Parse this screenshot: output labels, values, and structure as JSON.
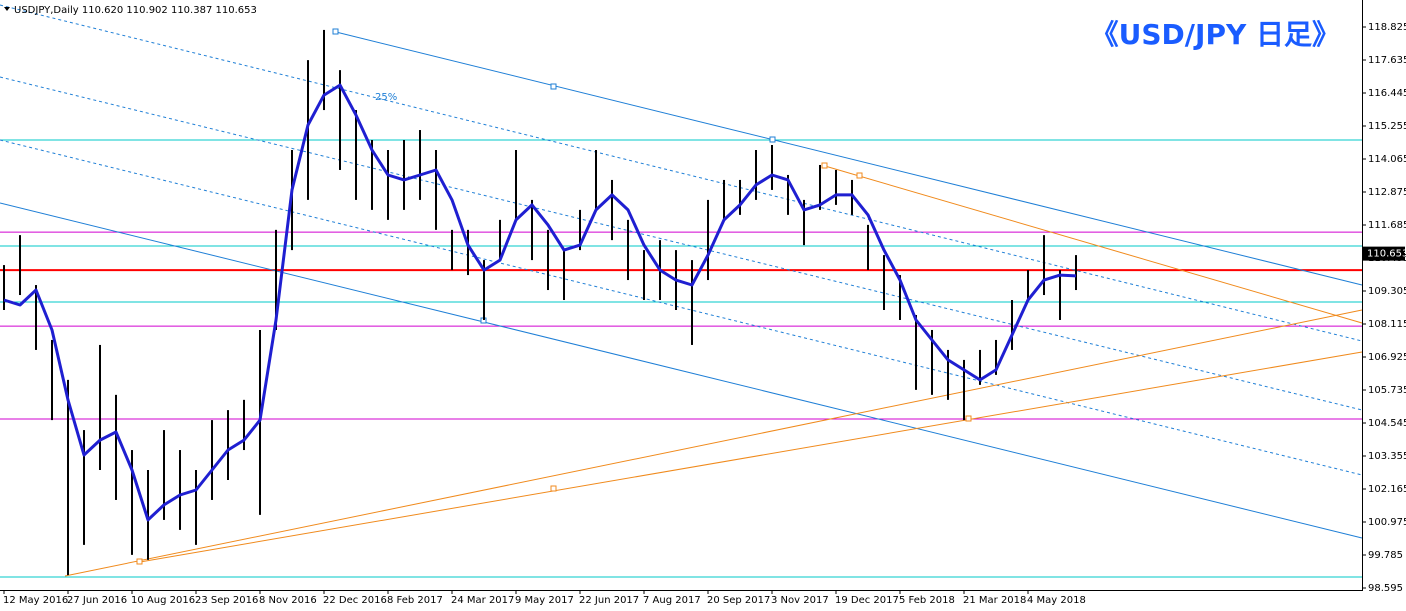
{
  "chart_data": {
    "type": "ohlc",
    "header": "USDJPY,Daily  110.620 110.902 110.387 110.653",
    "title": "《USD/JPY 日足》",
    "annotation": "25%",
    "bar_color": "#000000",
    "high": [
      110.24,
      111.32,
      109.52,
      107.54,
      106.1,
      104.29,
      107.36,
      105.56,
      103.57,
      102.85,
      104.29,
      103.57,
      102.85,
      104.65,
      105.01,
      105.38,
      107.9,
      111.51,
      114.39,
      117.63,
      118.72,
      117.27,
      115.83,
      114.75,
      114.39,
      114.75,
      115.11,
      114.39,
      111.51,
      111.51,
      110.42,
      111.87,
      114.39,
      112.59,
      111.51,
      110.78,
      112.23,
      114.39,
      113.31,
      111.87,
      110.78,
      111.14,
      110.78,
      110.42,
      112.59,
      113.31,
      113.31,
      114.39,
      114.57,
      113.49,
      112.59,
      113.85,
      113.67,
      113.31,
      111.69,
      110.6,
      109.88,
      108.44,
      107.9,
      107.18,
      106.82,
      107.18,
      107.54,
      108.98,
      110.06,
      111.32,
      110.06,
      110.6
    ],
    "low": [
      108.62,
      109.16,
      107.18,
      104.65,
      99.06,
      100.15,
      102.85,
      101.77,
      99.79,
      99.61,
      101.05,
      100.69,
      100.15,
      101.77,
      102.49,
      103.57,
      101.23,
      107.9,
      110.78,
      112.59,
      115.83,
      113.67,
      112.59,
      112.23,
      111.87,
      112.23,
      112.59,
      111.51,
      110.06,
      109.88,
      108.26,
      110.42,
      111.87,
      110.42,
      109.34,
      108.98,
      110.78,
      112.23,
      111.14,
      109.7,
      108.98,
      108.98,
      108.62,
      107.36,
      109.7,
      111.87,
      112.05,
      112.59,
      112.95,
      112.05,
      110.96,
      112.23,
      112.41,
      112.05,
      110.06,
      108.62,
      108.26,
      105.74,
      105.56,
      105.38,
      104.65,
      105.92,
      106.28,
      107.18,
      108.98,
      109.16,
      108.26,
      109.34
    ],
    "ma": {
      "color": "#1f1fd1",
      "values": [
        108.98,
        108.8,
        109.34,
        107.9,
        105.38,
        103.39,
        103.93,
        104.22,
        102.85,
        101.05,
        101.59,
        101.95,
        102.13,
        102.85,
        103.57,
        103.93,
        104.65,
        108.26,
        112.95,
        115.29,
        116.37,
        116.73,
        115.65,
        114.39,
        113.49,
        113.31,
        113.49,
        113.67,
        112.59,
        110.96,
        110.06,
        110.42,
        111.87,
        112.41,
        111.69,
        110.78,
        110.96,
        112.23,
        112.77,
        112.23,
        110.96,
        110.06,
        109.7,
        109.52,
        110.6,
        111.87,
        112.41,
        113.13,
        113.49,
        113.31,
        112.23,
        112.41,
        112.77,
        112.77,
        112.05,
        110.78,
        109.7,
        108.26,
        107.54,
        106.82,
        106.46,
        106.1,
        106.46,
        107.72,
        108.98,
        109.7,
        109.88,
        109.85
      ]
    },
    "levels": [
      {
        "value": 114.75,
        "color": "#00c8c8"
      },
      {
        "value": 110.93,
        "color": "#00c8c8"
      },
      {
        "value": 108.91,
        "color": "#00c8c8"
      },
      {
        "value": 98.99,
        "color": "#00c8c8"
      },
      {
        "value": 111.43,
        "color": "#d000d0"
      },
      {
        "value": 108.04,
        "color": "#d000d0"
      },
      {
        "value": 104.69,
        "color": "#d000d0"
      },
      {
        "value": 110.06,
        "color": "#ff0000"
      }
    ],
    "current_price": {
      "value": 110.653,
      "label": "110.653"
    },
    "xlim": [
      -0.25,
      84.875
    ],
    "xticks": [
      {
        "value": 0,
        "label": "12 May 2016"
      },
      {
        "value": 4,
        "label": "27 Jun 2016"
      },
      {
        "value": 8,
        "label": "10 Aug 2016"
      },
      {
        "value": 12,
        "label": "23 Sep 2016"
      },
      {
        "value": 16,
        "label": "8 Nov 2016"
      },
      {
        "value": 20,
        "label": "22 Dec 2016"
      },
      {
        "value": 24,
        "label": "8 Feb 2017"
      },
      {
        "value": 28,
        "label": "24 Mar 2017"
      },
      {
        "value": 32,
        "label": "9 May 2017"
      },
      {
        "value": 36,
        "label": "22 Jun 2017"
      },
      {
        "value": 40,
        "label": "7 Aug 2017"
      },
      {
        "value": 44,
        "label": "20 Sep 2017"
      },
      {
        "value": 48,
        "label": "3 Nov 2017"
      },
      {
        "value": 52,
        "label": "19 Dec 2017"
      },
      {
        "value": 56,
        "label": "5 Feb 2018"
      },
      {
        "value": 60,
        "label": "21 Mar 2018"
      },
      {
        "value": 64,
        "label": "4 May 2018"
      }
    ],
    "ylim": [
      98.523,
      119.799
    ],
    "yticks": [
      98.595,
      99.785,
      100.975,
      102.165,
      103.355,
      104.545,
      105.735,
      106.925,
      108.115,
      109.305,
      110.495,
      111.685,
      112.875,
      114.065,
      115.255,
      116.445,
      117.635,
      118.825
    ]
  }
}
